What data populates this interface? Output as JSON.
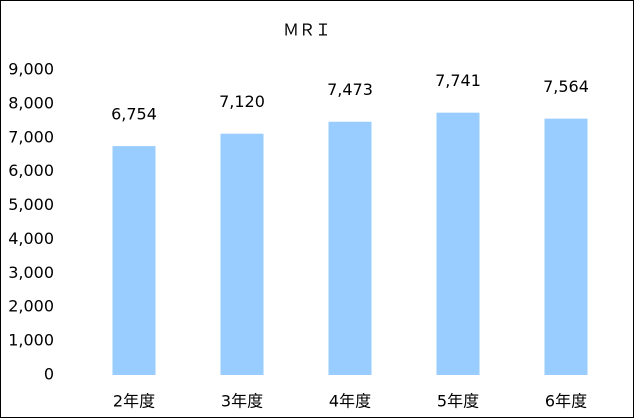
{
  "chart_data": {
    "type": "bar",
    "title": "ＭＲＩ",
    "categories": [
      "2年度",
      "3年度",
      "4年度",
      "5年度",
      "6年度"
    ],
    "values": [
      6754,
      7120,
      7473,
      7741,
      7564
    ],
    "value_labels": [
      "6,754",
      "7,120",
      "7,473",
      "7,741",
      "7,564"
    ],
    "color": "#99ccff",
    "ylim": [
      0,
      9000
    ],
    "yticks": [
      0,
      {
        "value": 1000,
        "label": "1,000"
      },
      {
        "value": 2000,
        "label": "2,000"
      },
      {
        "value": 3000,
        "label": "3,000"
      },
      {
        "value": 4000,
        "label": "4,000"
      },
      {
        "value": 5000,
        "label": "5,000"
      },
      {
        "value": 6000,
        "label": "6,000"
      },
      {
        "value": 7000,
        "label": "7,000"
      },
      {
        "value": 8000,
        "label": "8,000"
      },
      {
        "value": 9000,
        "label": "9,000"
      }
    ],
    "grid": false
  }
}
